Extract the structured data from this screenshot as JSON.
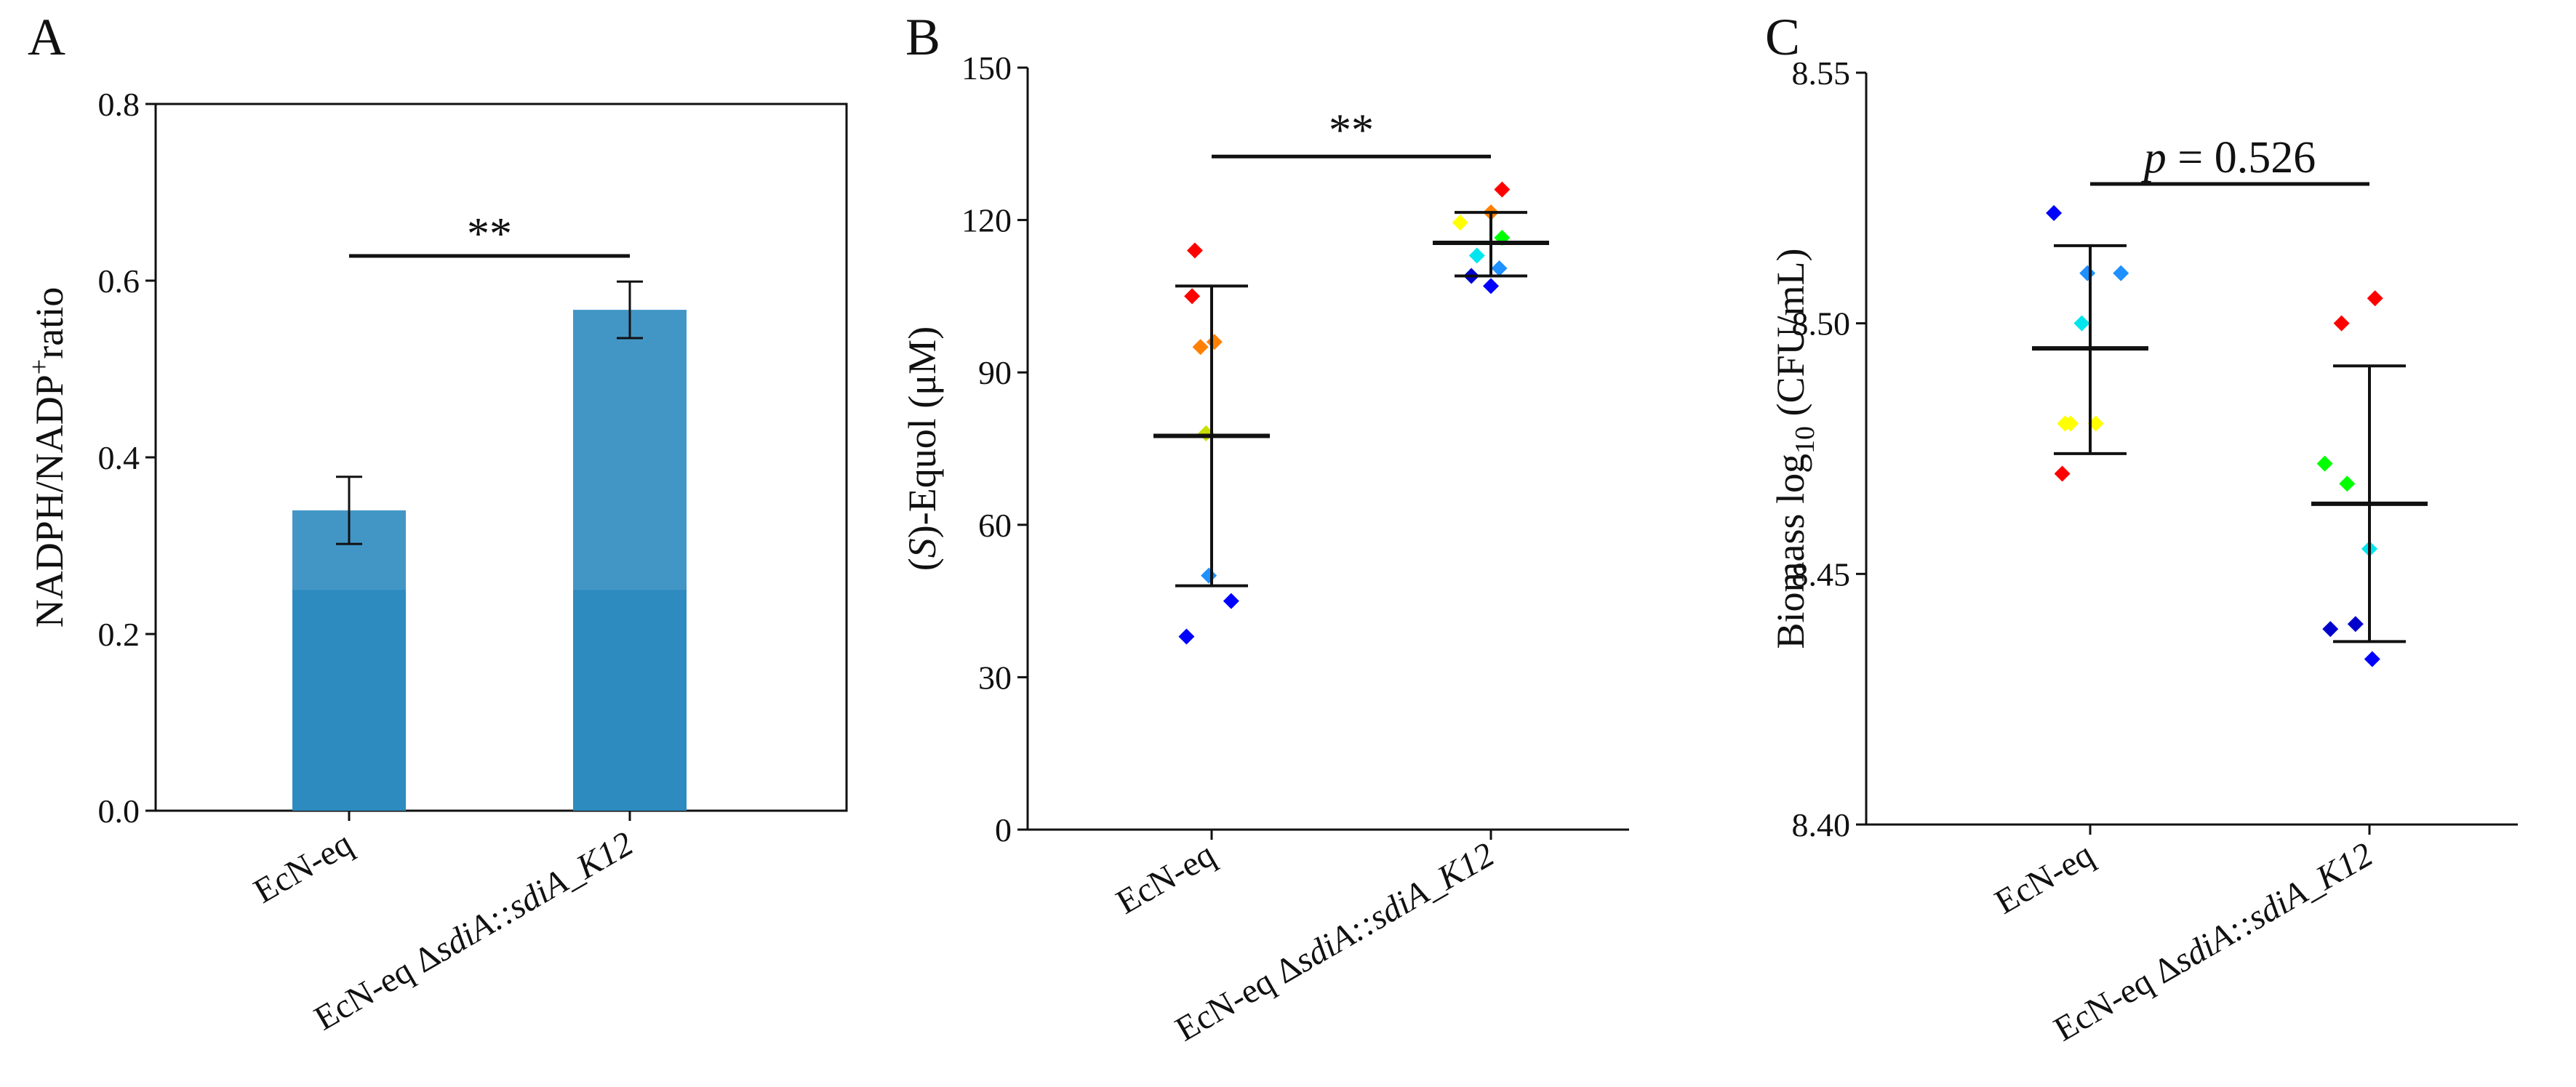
{
  "chart_data": [
    {
      "panel": "A",
      "type": "bar",
      "categories": [
        "EcN-eq",
        "EcN-eq ΔsdiA::sdiA_K12"
      ],
      "category_plain": "EcN-eq",
      "category_mut": {
        "prefix": "EcN-eq Δ",
        "gene": "sdiA",
        "mid": "::",
        "suffix": "sdiA_K12"
      },
      "values": [
        0.34,
        0.567
      ],
      "errors": [
        0.038,
        0.032
      ],
      "ylabel": {
        "main": "NADPH/NADP",
        "sup": "+",
        "tail": "ratio"
      },
      "ylim": [
        0,
        0.8
      ],
      "yticks": [
        "0.0",
        "0.2",
        "0.4",
        "0.6",
        "0.8"
      ],
      "bar_color": "#2e8bc0",
      "significance": {
        "label": "**",
        "y": 0.628
      }
    },
    {
      "panel": "B",
      "type": "scatter",
      "categories": [
        "EcN-eq",
        "EcN-eq ΔsdiA::sdiA_K12"
      ],
      "category_plain": "EcN-eq",
      "category_mut": {
        "prefix": "EcN-eq Δ",
        "gene": "sdiA",
        "mid": "::",
        "suffix": "sdiA_K12"
      },
      "ylabel": {
        "pre": "(",
        "ital": "S",
        "post": ")-Equol (μM)"
      },
      "ylim": [
        0,
        150
      ],
      "yticks": [
        "0",
        "30",
        "60",
        "90",
        "120",
        "150"
      ],
      "series": [
        {
          "name": "EcN-eq",
          "mean": 77.5,
          "sd_low": 48.0,
          "sd_high": 107.0,
          "points": [
            {
              "dx": -0.06,
              "y": 114,
              "color": "#ff0000"
            },
            {
              "dx": -0.07,
              "y": 105,
              "color": "#ff0000"
            },
            {
              "dx": -0.04,
              "y": 95,
              "color": "#ff8000"
            },
            {
              "dx": 0.01,
              "y": 96,
              "color": "#ff8000"
            },
            {
              "dx": -0.02,
              "y": 78,
              "color": "#c8e000"
            },
            {
              "dx": -0.01,
              "y": 50,
              "color": "#1e90ff"
            },
            {
              "dx": 0.07,
              "y": 45,
              "color": "#0000ff"
            },
            {
              "dx": -0.09,
              "y": 38,
              "color": "#0000ff"
            }
          ]
        },
        {
          "name": "EcN-eq ΔsdiA::sdiA_K12",
          "mean": 115.5,
          "sd_low": 109.0,
          "sd_high": 121.5,
          "points": [
            {
              "dx": 0.04,
              "y": 126,
              "color": "#ff0000"
            },
            {
              "dx": -0.11,
              "y": 119.5,
              "color": "#ffff00"
            },
            {
              "dx": 0.0,
              "y": 121.5,
              "color": "#ff8000"
            },
            {
              "dx": 0.04,
              "y": 116.5,
              "color": "#00ff00"
            },
            {
              "dx": -0.05,
              "y": 113,
              "color": "#00e5ee"
            },
            {
              "dx": 0.03,
              "y": 110.5,
              "color": "#1e90ff"
            },
            {
              "dx": -0.07,
              "y": 109,
              "color": "#0000cd"
            },
            {
              "dx": 0.0,
              "y": 107,
              "color": "#0000ff"
            }
          ]
        }
      ],
      "significance": {
        "label": "**",
        "y": 132.5
      }
    },
    {
      "panel": "C",
      "type": "scatter",
      "categories": [
        "EcN-eq",
        "EcN-eq ΔsdiA::sdiA_K12"
      ],
      "category_plain": "EcN-eq",
      "category_mut": {
        "prefix": "EcN-eq Δ",
        "gene": "sdiA",
        "mid": "::",
        "suffix": "sdiA_K12"
      },
      "ylabel": {
        "main": "Biomass log",
        "sub": "10",
        "tail": " (CFU/mL)"
      },
      "ylim": [
        8.4,
        8.55
      ],
      "yticks": [
        "8.40",
        "8.45",
        "8.50",
        "8.55"
      ],
      "series": [
        {
          "name": "EcN-eq",
          "mean": 8.495,
          "sd_low": 8.474,
          "sd_high": 8.5155,
          "points": [
            {
              "dx": -0.13,
              "y": 8.522,
              "color": "#0000ff"
            },
            {
              "dx": -0.01,
              "y": 8.51,
              "color": "#1e90ff"
            },
            {
              "dx": 0.11,
              "y": 8.51,
              "color": "#1e90ff"
            },
            {
              "dx": -0.03,
              "y": 8.5,
              "color": "#00e5ee"
            },
            {
              "dx": -0.09,
              "y": 8.48,
              "color": "#ffff00"
            },
            {
              "dx": -0.07,
              "y": 8.48,
              "color": "#ffff00"
            },
            {
              "dx": 0.02,
              "y": 8.48,
              "color": "#ffff00"
            },
            {
              "dx": -0.1,
              "y": 8.47,
              "color": "#ff0000"
            }
          ]
        },
        {
          "name": "EcN-eq ΔsdiA::sdiA_K12",
          "mean": 8.464,
          "sd_low": 8.4365,
          "sd_high": 8.4915,
          "points": [
            {
              "dx": -0.1,
              "y": 8.5,
              "color": "#ff0000"
            },
            {
              "dx": 0.02,
              "y": 8.505,
              "color": "#ff0000"
            },
            {
              "dx": -0.16,
              "y": 8.472,
              "color": "#00ff00"
            },
            {
              "dx": -0.08,
              "y": 8.468,
              "color": "#00ff00"
            },
            {
              "dx": 0.0,
              "y": 8.455,
              "color": "#00e5ee"
            },
            {
              "dx": -0.14,
              "y": 8.439,
              "color": "#0000cd"
            },
            {
              "dx": -0.05,
              "y": 8.44,
              "color": "#0000cd"
            },
            {
              "dx": 0.01,
              "y": 8.433,
              "color": "#0000ff"
            }
          ]
        }
      ],
      "significance": {
        "label_italic": "p",
        "label_rest": " = 0.526",
        "y": 8.5278
      }
    }
  ]
}
